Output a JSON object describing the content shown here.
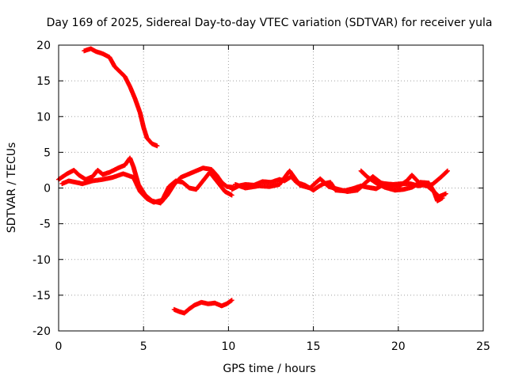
{
  "chart_data": {
    "type": "scatter",
    "title": "Day 169 of 2025, Sidereal Day-to-day VTEC variation (SDTVAR) for receiver yula",
    "xlabel": "GPS time / hours",
    "ylabel": "SDTVAR / TECUs",
    "xlim": [
      0,
      25
    ],
    "ylim": [
      -20,
      20
    ],
    "xticks": [
      "0",
      "5",
      "10",
      "15",
      "20",
      "25"
    ],
    "yticks": [
      "20",
      "15",
      "10",
      "5",
      "0",
      "-5",
      "-10",
      "-15",
      "-20"
    ],
    "xtick_values": [
      0,
      5,
      10,
      15,
      20,
      25
    ],
    "ytick_values": [
      20,
      15,
      10,
      5,
      0,
      -5,
      -10,
      -15,
      -20
    ],
    "grid": true,
    "marker": "plus",
    "color": "#ff0000",
    "series": [
      {
        "name": "upper-arc",
        "points": [
          [
            1.5,
            19.2
          ],
          [
            1.9,
            19.5
          ],
          [
            2.2,
            19.1
          ],
          [
            2.6,
            18.8
          ],
          [
            3.0,
            18.3
          ],
          [
            3.3,
            17.0
          ],
          [
            3.6,
            16.3
          ],
          [
            3.9,
            15.6
          ],
          [
            4.2,
            14.2
          ],
          [
            4.5,
            12.5
          ],
          [
            4.8,
            10.5
          ],
          [
            5.0,
            8.5
          ],
          [
            5.2,
            7.0
          ],
          [
            5.5,
            6.2
          ],
          [
            5.8,
            5.9
          ]
        ]
      },
      {
        "name": "central-band-a",
        "points": [
          [
            0.0,
            1.2
          ],
          [
            0.5,
            2.0
          ],
          [
            0.9,
            2.5
          ],
          [
            1.2,
            1.8
          ],
          [
            1.6,
            1.2
          ],
          [
            2.0,
            1.6
          ],
          [
            2.3,
            2.5
          ],
          [
            2.6,
            1.9
          ],
          [
            3.0,
            2.2
          ],
          [
            3.5,
            2.8
          ],
          [
            3.9,
            3.2
          ],
          [
            4.2,
            4.2
          ],
          [
            4.4,
            3.0
          ],
          [
            4.7,
            0.5
          ],
          [
            5.1,
            -1.0
          ],
          [
            5.5,
            -1.8
          ],
          [
            6.0,
            -2.1
          ],
          [
            6.4,
            -1.0
          ],
          [
            6.8,
            0.5
          ],
          [
            7.2,
            1.5
          ],
          [
            7.7,
            2.0
          ],
          [
            8.1,
            2.4
          ],
          [
            8.5,
            2.8
          ],
          [
            9.0,
            2.6
          ],
          [
            9.3,
            1.8
          ],
          [
            9.6,
            0.8
          ],
          [
            9.9,
            0.2
          ],
          [
            10.3,
            0.1
          ]
        ]
      },
      {
        "name": "central-band-b",
        "points": [
          [
            0.2,
            0.6
          ],
          [
            0.6,
            1.0
          ],
          [
            1.0,
            0.8
          ],
          [
            1.4,
            0.6
          ],
          [
            2.0,
            1.0
          ],
          [
            2.6,
            1.2
          ],
          [
            3.2,
            1.5
          ],
          [
            3.8,
            2.0
          ],
          [
            4.4,
            1.5
          ],
          [
            4.8,
            -0.5
          ],
          [
            5.2,
            -1.5
          ],
          [
            5.6,
            -2.0
          ],
          [
            6.1,
            -1.7
          ],
          [
            6.5,
            0.2
          ],
          [
            6.9,
            1.0
          ],
          [
            7.3,
            0.8
          ],
          [
            7.7,
            0.0
          ],
          [
            8.1,
            -0.2
          ],
          [
            8.5,
            1.0
          ],
          [
            8.9,
            2.2
          ],
          [
            9.3,
            1.0
          ],
          [
            9.8,
            -0.5
          ],
          [
            10.2,
            -1.0
          ]
        ]
      },
      {
        "name": "lower-arc",
        "points": [
          [
            6.8,
            -17.0
          ],
          [
            7.1,
            -17.3
          ],
          [
            7.4,
            -17.5
          ],
          [
            7.7,
            -16.9
          ],
          [
            8.0,
            -16.4
          ],
          [
            8.4,
            -16.0
          ],
          [
            8.8,
            -16.2
          ],
          [
            9.2,
            -16.1
          ],
          [
            9.6,
            -16.5
          ],
          [
            9.9,
            -16.2
          ],
          [
            10.2,
            -15.7
          ]
        ]
      },
      {
        "name": "central-band-c",
        "points": [
          [
            10.2,
            -0.2
          ],
          [
            10.6,
            0.3
          ],
          [
            11.0,
            0.5
          ],
          [
            11.5,
            0.4
          ],
          [
            12.0,
            0.9
          ],
          [
            12.5,
            0.8
          ],
          [
            13.0,
            1.2
          ],
          [
            13.3,
            1.0
          ],
          [
            13.7,
            1.6
          ],
          [
            14.0,
            0.8
          ],
          [
            14.5,
            0.4
          ],
          [
            15.0,
            -0.3
          ],
          [
            15.3,
            0.2
          ],
          [
            15.6,
            0.6
          ],
          [
            16.0,
            0.8
          ],
          [
            16.3,
            -0.3
          ],
          [
            16.8,
            -0.4
          ],
          [
            17.3,
            -0.1
          ],
          [
            17.8,
            0.3
          ],
          [
            18.2,
            0.1
          ],
          [
            18.7,
            -0.1
          ],
          [
            19.2,
            0.6
          ],
          [
            19.7,
            0.5
          ],
          [
            20.2,
            0.6
          ],
          [
            20.7,
            0.6
          ],
          [
            21.2,
            0.3
          ],
          [
            21.6,
            0.5
          ],
          [
            22.0,
            -0.3
          ],
          [
            22.4,
            -1.2
          ],
          [
            22.8,
            -0.8
          ]
        ]
      },
      {
        "name": "central-band-d",
        "points": [
          [
            10.4,
            0.5
          ],
          [
            11.0,
            0.0
          ],
          [
            11.8,
            0.3
          ],
          [
            12.4,
            0.2
          ],
          [
            13.0,
            0.5
          ],
          [
            13.6,
            2.4
          ],
          [
            14.2,
            0.4
          ],
          [
            14.8,
            0.0
          ],
          [
            15.4,
            1.3
          ],
          [
            15.9,
            0.2
          ],
          [
            16.5,
            -0.2
          ],
          [
            17.0,
            -0.5
          ],
          [
            17.6,
            -0.3
          ],
          [
            18.1,
            0.8
          ],
          [
            18.5,
            1.6
          ],
          [
            19.0,
            0.7
          ],
          [
            19.6,
            0.4
          ],
          [
            20.0,
            0.2
          ],
          [
            20.5,
            1.0
          ],
          [
            20.8,
            1.8
          ],
          [
            21.2,
            0.8
          ],
          [
            21.6,
            0.3
          ],
          [
            22.0,
            0.5
          ],
          [
            22.5,
            1.5
          ],
          [
            22.9,
            2.4
          ]
        ]
      },
      {
        "name": "central-band-e",
        "points": [
          [
            17.8,
            2.4
          ],
          [
            18.2,
            1.5
          ],
          [
            18.7,
            0.7
          ],
          [
            19.2,
            0.1
          ],
          [
            19.8,
            -0.3
          ],
          [
            20.3,
            -0.2
          ],
          [
            20.8,
            0.1
          ],
          [
            21.3,
            0.8
          ],
          [
            21.8,
            0.7
          ],
          [
            22.1,
            -0.5
          ],
          [
            22.3,
            -1.8
          ],
          [
            22.6,
            -1.4
          ]
        ]
      }
    ]
  }
}
